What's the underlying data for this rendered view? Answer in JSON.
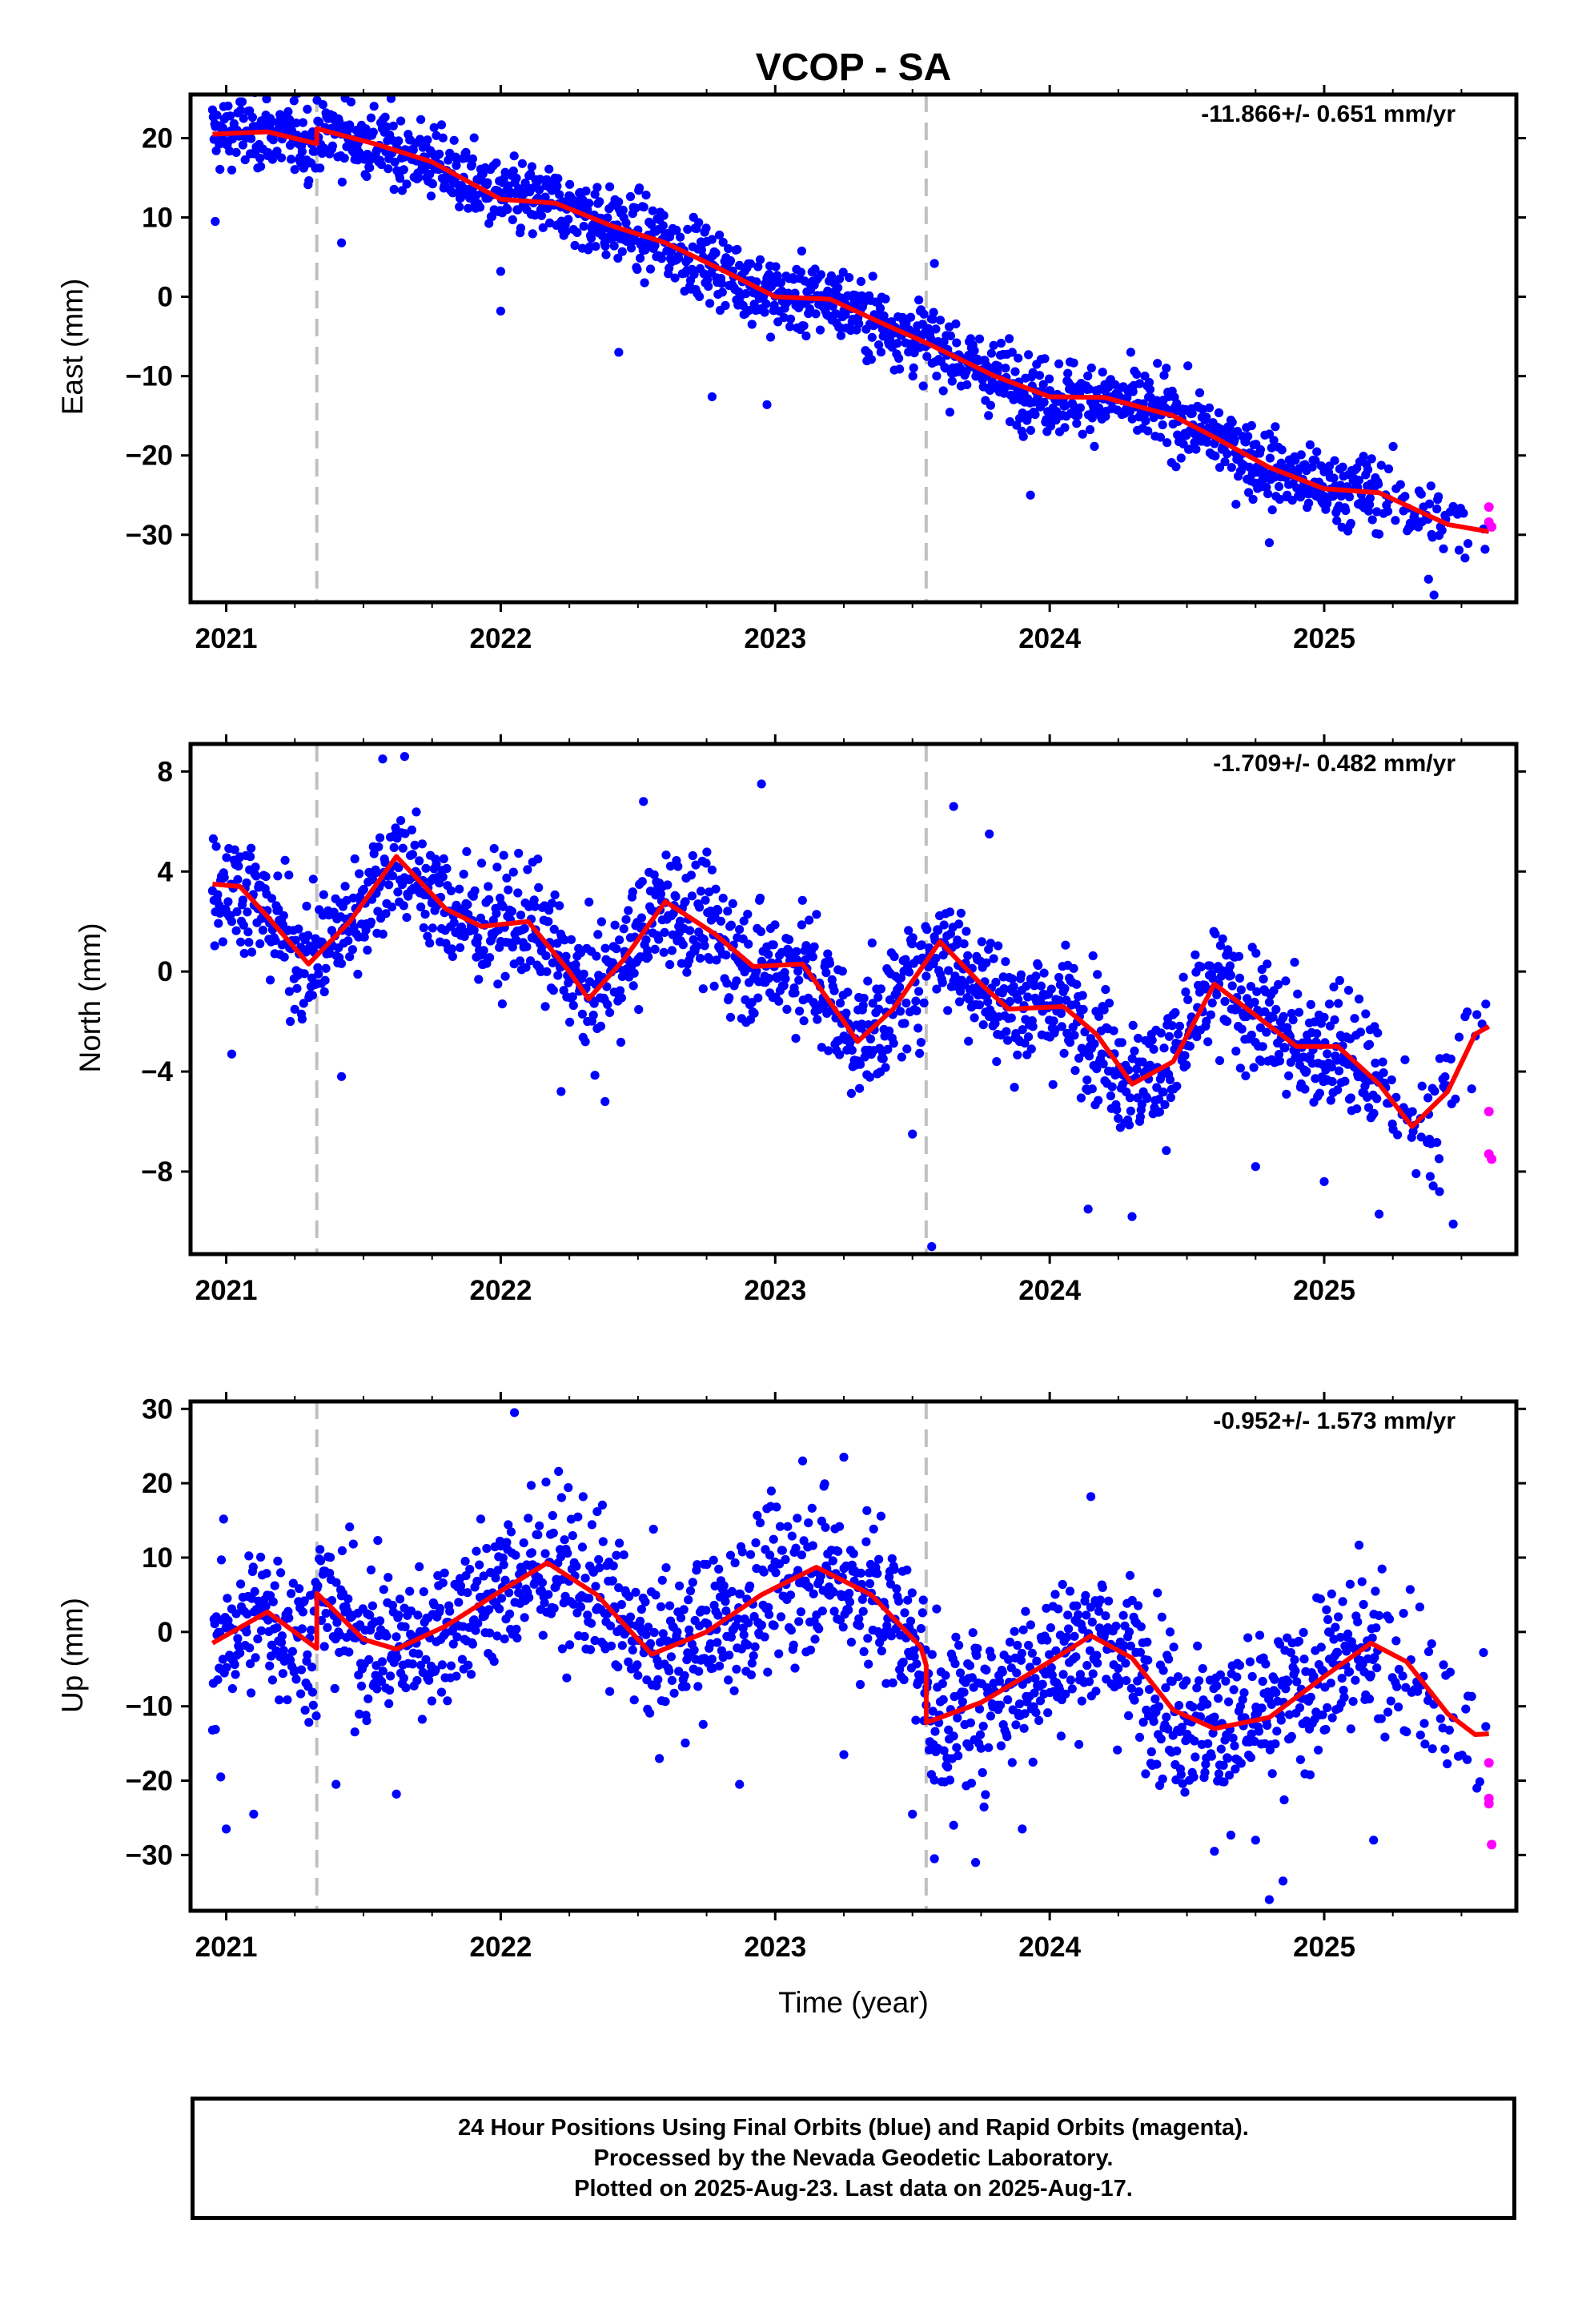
{
  "title": "VCOP - SA",
  "x_axis_label": "Time (year)",
  "footer": {
    "line1": "24 Hour Positions Using Final Orbits (blue) and Rapid Orbits (magenta).",
    "line2": "Processed by the Nevada Geodetic Laboratory.",
    "line3": "Plotted on 2025-Aug-23. Last data on 2025-Aug-17."
  },
  "colors": {
    "final_orbits": "#0000ff",
    "rapid_orbits": "#ff00ff",
    "model_fit": "#ff0000",
    "events": "#c0c0c0"
  },
  "chart_data": [
    {
      "type": "scatter",
      "component": "east",
      "ylabel": "East (mm)",
      "rate_text": "-11.866+/- 0.651 mm/yr",
      "xlim": [
        2020.87,
        2025.7
      ],
      "ylim": [
        -38.5,
        25.5
      ],
      "x_ticks": [
        2021,
        2022,
        2023,
        2024,
        2025
      ],
      "y_ticks": [
        -30,
        -20,
        -10,
        0,
        10,
        20
      ],
      "event_lines": [
        2021.33,
        2023.55
      ],
      "model_fit_knots": [
        [
          2020.95,
          20.5
        ],
        [
          2021.15,
          20.8
        ],
        [
          2021.33,
          19.3
        ],
        [
          2021.33,
          21.2
        ],
        [
          2021.55,
          19.2
        ],
        [
          2021.75,
          17.0
        ],
        [
          2022.0,
          12.3
        ],
        [
          2022.2,
          11.8
        ],
        [
          2022.4,
          9.0
        ],
        [
          2022.6,
          6.8
        ],
        [
          2022.8,
          3.5
        ],
        [
          2023.0,
          0.0
        ],
        [
          2023.2,
          -0.3
        ],
        [
          2023.4,
          -3.5
        ],
        [
          2023.55,
          -5.8
        ],
        [
          2023.8,
          -10.0
        ],
        [
          2024.0,
          -12.6
        ],
        [
          2024.2,
          -12.7
        ],
        [
          2024.45,
          -15.0
        ],
        [
          2024.6,
          -17.7
        ],
        [
          2024.8,
          -21.5
        ],
        [
          2025.0,
          -24.2
        ],
        [
          2025.2,
          -24.7
        ],
        [
          2025.45,
          -28.7
        ],
        [
          2025.6,
          -29.6
        ]
      ],
      "rapid_orbit_points": [
        [
          2025.6,
          -26.5
        ],
        [
          2025.6,
          -28.4
        ],
        [
          2025.61,
          -29.0
        ]
      ],
      "final_orbit_scatter_mm": 2.3,
      "outlier_points": [
        [
          2020.96,
          9.5
        ],
        [
          2021.42,
          6.8
        ],
        [
          2022.0,
          -1.8
        ],
        [
          2022.0,
          3.2
        ],
        [
          2022.43,
          -7.0
        ],
        [
          2022.77,
          -12.6
        ],
        [
          2022.97,
          -13.6
        ],
        [
          2023.58,
          4.2
        ],
        [
          2023.93,
          -25.0
        ],
        [
          2024.8,
          -31.0
        ],
        [
          2025.38,
          -35.6
        ],
        [
          2025.4,
          -37.6
        ]
      ]
    },
    {
      "type": "scatter",
      "component": "north",
      "ylabel": "North (mm)",
      "rate_text": "-1.709+/- 0.482 mm/yr",
      "xlim": [
        2020.87,
        2025.7
      ],
      "ylim": [
        -11.3,
        9.1
      ],
      "x_ticks": [
        2021,
        2022,
        2023,
        2024,
        2025
      ],
      "y_ticks": [
        -8,
        -4,
        0,
        4,
        8
      ],
      "event_lines": [
        2021.33,
        2023.55
      ],
      "model_fit_knots": [
        [
          2020.95,
          3.5
        ],
        [
          2021.05,
          3.4
        ],
        [
          2021.15,
          2.2
        ],
        [
          2021.3,
          0.3
        ],
        [
          2021.45,
          2.0
        ],
        [
          2021.62,
          4.6
        ],
        [
          2021.8,
          2.5
        ],
        [
          2021.93,
          1.8
        ],
        [
          2022.1,
          2.0
        ],
        [
          2022.25,
          0.0
        ],
        [
          2022.32,
          -1.1
        ],
        [
          2022.45,
          0.5
        ],
        [
          2022.6,
          2.8
        ],
        [
          2022.78,
          1.5
        ],
        [
          2022.92,
          0.2
        ],
        [
          2023.1,
          0.3
        ],
        [
          2023.25,
          -2.0
        ],
        [
          2023.3,
          -2.8
        ],
        [
          2023.43,
          -1.5
        ],
        [
          2023.6,
          1.2
        ],
        [
          2023.75,
          -0.5
        ],
        [
          2023.85,
          -1.5
        ],
        [
          2024.05,
          -1.4
        ],
        [
          2024.17,
          -2.5
        ],
        [
          2024.3,
          -4.5
        ],
        [
          2024.45,
          -3.6
        ],
        [
          2024.6,
          -0.5
        ],
        [
          2024.72,
          -1.5
        ],
        [
          2024.9,
          -3.0
        ],
        [
          2025.05,
          -3.0
        ],
        [
          2025.2,
          -4.5
        ],
        [
          2025.32,
          -6.2
        ],
        [
          2025.45,
          -4.8
        ],
        [
          2025.55,
          -2.5
        ],
        [
          2025.6,
          -2.2
        ]
      ],
      "rapid_orbit_points": [
        [
          2025.6,
          -5.6
        ],
        [
          2025.6,
          -7.3
        ],
        [
          2025.61,
          -7.5
        ]
      ],
      "final_orbit_scatter_mm": 1.2,
      "outlier_points": [
        [
          2021.02,
          -3.3
        ],
        [
          2021.23,
          -0.8
        ],
        [
          2021.42,
          -4.2
        ],
        [
          2021.57,
          8.5
        ],
        [
          2021.65,
          8.6
        ],
        [
          2022.22,
          -4.8
        ],
        [
          2022.38,
          -5.2
        ],
        [
          2022.52,
          6.8
        ],
        [
          2022.95,
          7.5
        ],
        [
          2023.5,
          -6.5
        ],
        [
          2023.57,
          -11.0
        ],
        [
          2023.65,
          6.6
        ],
        [
          2023.78,
          5.5
        ],
        [
          2024.14,
          -9.5
        ],
        [
          2024.3,
          -9.8
        ],
        [
          2024.75,
          -7.8
        ],
        [
          2025.0,
          -8.4
        ],
        [
          2025.2,
          -9.7
        ],
        [
          2025.42,
          -8.8
        ],
        [
          2025.47,
          -10.1
        ]
      ]
    },
    {
      "type": "scatter",
      "component": "up",
      "ylabel": "Up (mm)",
      "rate_text": "-0.952+/- 1.573 mm/yr",
      "xlim": [
        2020.87,
        2025.7
      ],
      "ylim": [
        -37.5,
        31
      ],
      "x_ticks": [
        2021,
        2022,
        2023,
        2024,
        2025
      ],
      "y_ticks": [
        -30,
        -20,
        -10,
        0,
        10,
        20,
        30
      ],
      "event_lines": [
        2021.33,
        2023.55
      ],
      "model_fit_knots": [
        [
          2020.95,
          -1.5
        ],
        [
          2021.15,
          2.7
        ],
        [
          2021.33,
          -2.2
        ],
        [
          2021.33,
          5.2
        ],
        [
          2021.5,
          -1.0
        ],
        [
          2021.62,
          -2.3
        ],
        [
          2021.8,
          0.8
        ],
        [
          2022.0,
          5.5
        ],
        [
          2022.17,
          9.3
        ],
        [
          2022.35,
          5.0
        ],
        [
          2022.55,
          -3.0
        ],
        [
          2022.75,
          0.0
        ],
        [
          2022.95,
          5.0
        ],
        [
          2023.15,
          8.7
        ],
        [
          2023.35,
          5.0
        ],
        [
          2023.53,
          -2.0
        ],
        [
          2023.55,
          -4.5
        ],
        [
          2023.55,
          -12.2
        ],
        [
          2023.75,
          -9.5
        ],
        [
          2024.0,
          -4.0
        ],
        [
          2024.15,
          -0.5
        ],
        [
          2024.3,
          -3.5
        ],
        [
          2024.45,
          -10.5
        ],
        [
          2024.6,
          -13.0
        ],
        [
          2024.8,
          -11.5
        ],
        [
          2025.0,
          -6.0
        ],
        [
          2025.17,
          -1.5
        ],
        [
          2025.3,
          -4.0
        ],
        [
          2025.45,
          -11.0
        ],
        [
          2025.55,
          -13.8
        ],
        [
          2025.6,
          -13.7
        ]
      ],
      "rapid_orbit_points": [
        [
          2025.6,
          -17.6
        ],
        [
          2025.6,
          -22.4
        ],
        [
          2025.6,
          -23.1
        ],
        [
          2025.61,
          -28.6
        ]
      ],
      "final_orbit_scatter_mm": 5.2,
      "outlier_points": [
        [
          2020.98,
          -19.5
        ],
        [
          2021.0,
          -26.5
        ],
        [
          2021.1,
          -24.5
        ],
        [
          2021.4,
          -20.5
        ],
        [
          2021.62,
          -21.8
        ],
        [
          2022.05,
          29.5
        ],
        [
          2022.87,
          -20.5
        ],
        [
          2023.1,
          23.0
        ],
        [
          2023.25,
          23.5
        ],
        [
          2023.25,
          -16.5
        ],
        [
          2023.5,
          -24.5
        ],
        [
          2023.58,
          -30.5
        ],
        [
          2023.65,
          -26.0
        ],
        [
          2023.73,
          -31.0
        ],
        [
          2023.9,
          -26.5
        ],
        [
          2024.15,
          18.2
        ],
        [
          2024.6,
          -29.5
        ],
        [
          2024.75,
          -28.0
        ],
        [
          2024.8,
          -36.0
        ],
        [
          2024.85,
          -33.5
        ],
        [
          2025.18,
          -28.0
        ]
      ]
    }
  ]
}
